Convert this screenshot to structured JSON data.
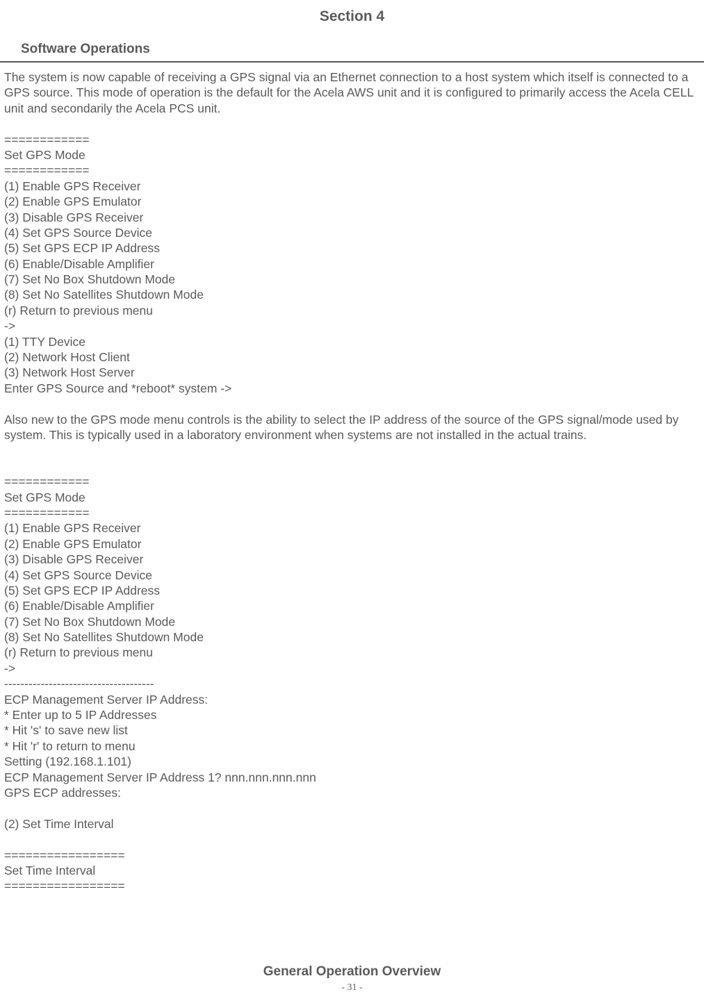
{
  "header": {
    "section_title": "Section 4",
    "subsection_title": "Software Operations"
  },
  "body": {
    "intro": "The system is now capable of receiving a GPS signal via an Ethernet connection to a host system which itself is connected to a GPS source. This mode of operation is the default for the Acela AWS unit and it is configured to primarily access the Acela CELL unit and secondarily the Acela PCS unit.",
    "menu1": "============\nSet GPS Mode\n============\n(1) Enable GPS Receiver\n(2) Enable GPS Emulator\n(3) Disable GPS Receiver\n(4) Set GPS Source Device\n(5) Set GPS ECP IP Address\n(6) Enable/Disable Amplifier\n(7) Set No Box Shutdown Mode\n(8) Set No Satellites Shutdown Mode\n(r) Return to previous menu\n->\n(1) TTY Device\n(2) Network Host Client\n(3) Network Host Server\nEnter GPS Source and *reboot* system ->",
    "mid_para": "Also new to the GPS mode menu controls is the ability to select the IP address of the source of the GPS signal/mode used by system. This is typically used in a laboratory environment when systems are not installed in the actual trains.",
    "menu2": "============\nSet GPS Mode\n============\n(1) Enable GPS Receiver\n(2) Enable GPS Emulator\n(3) Disable GPS Receiver\n(4) Set GPS Source Device\n(5) Set GPS ECP IP Address\n(6) Enable/Disable Amplifier\n(7) Set No Box Shutdown Mode\n(8) Set No Satellites Shutdown Mode\n(r) Return to previous menu\n->\n-------------------------------------\nECP Management Server IP Address:\n* Enter up to 5 IP Addresses\n* Hit 's' to save new list\n* Hit 'r' to return to menu\nSetting (192.168.1.101)\nECP Management Server IP Address 1? nnn.nnn.nnn.nnn\nGPS ECP addresses:",
    "menu3": "(2) Set Time Interval",
    "menu4": "=================\nSet Time Interval\n================="
  },
  "footer": {
    "title": "General Operation Overview",
    "page": "- 31 -"
  }
}
